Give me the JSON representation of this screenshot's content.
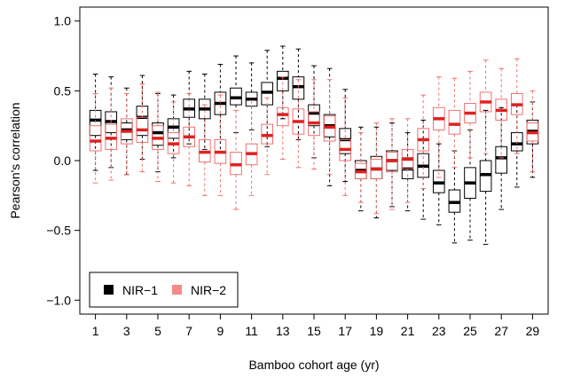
{
  "chart_data": {
    "type": "boxplot",
    "xlabel": "Bamboo cohort age (yr)",
    "ylabel": "Pearson's correlation",
    "ylim": [
      -1.1,
      1.1
    ],
    "yticks": [
      "1.0",
      "0.5",
      "0.0",
      "−0.5",
      "−1.0"
    ],
    "ytick_values": [
      1.0,
      0.5,
      0.0,
      -0.5,
      -1.0
    ],
    "xticks": [
      "1",
      "3",
      "5",
      "7",
      "9",
      "11",
      "13",
      "15",
      "17",
      "19",
      "21",
      "23",
      "25",
      "27",
      "29"
    ],
    "xtick_values": [
      1,
      3,
      5,
      7,
      9,
      11,
      13,
      15,
      17,
      19,
      21,
      23,
      25,
      27,
      29
    ],
    "legend_position": "bottom-left",
    "grid": false,
    "series": [
      {
        "name": "NIR−1",
        "color": "#000000",
        "median_color": "#000000",
        "x": [
          1,
          2,
          3,
          4,
          5,
          6,
          7,
          8,
          9,
          10,
          11,
          12,
          13,
          14,
          15,
          16,
          17,
          18,
          19,
          20,
          21,
          22,
          23,
          24,
          25,
          26,
          27,
          28,
          29
        ],
        "median": [
          0.29,
          0.28,
          0.22,
          0.31,
          0.2,
          0.24,
          0.37,
          0.37,
          0.41,
          0.45,
          0.44,
          0.49,
          0.59,
          0.53,
          0.34,
          0.25,
          0.15,
          -0.07,
          -0.06,
          0.0,
          -0.06,
          -0.04,
          -0.16,
          -0.3,
          -0.16,
          -0.1,
          0.02,
          0.12,
          0.21
        ],
        "q1": [
          0.18,
          0.2,
          0.15,
          0.18,
          0.11,
          0.16,
          0.31,
          0.3,
          0.33,
          0.4,
          0.39,
          0.4,
          0.5,
          0.44,
          0.25,
          0.17,
          0.05,
          -0.13,
          -0.13,
          -0.07,
          -0.13,
          -0.12,
          -0.23,
          -0.37,
          -0.27,
          -0.22,
          -0.09,
          0.07,
          0.12
        ],
        "q3": [
          0.36,
          0.35,
          0.27,
          0.39,
          0.27,
          0.3,
          0.44,
          0.44,
          0.49,
          0.52,
          0.49,
          0.56,
          0.64,
          0.6,
          0.4,
          0.33,
          0.23,
          0.0,
          0.03,
          0.07,
          0.02,
          0.05,
          -0.07,
          -0.21,
          -0.05,
          0.0,
          0.1,
          0.2,
          0.29
        ],
        "whisker_low": [
          -0.07,
          -0.05,
          -0.1,
          0.01,
          -0.08,
          0.02,
          0.12,
          0.08,
          0.06,
          0.2,
          0.22,
          0.1,
          0.3,
          0.15,
          0.02,
          -0.18,
          -0.15,
          -0.36,
          -0.41,
          -0.33,
          -0.36,
          -0.42,
          -0.46,
          -0.59,
          -0.57,
          -0.6,
          -0.35,
          -0.19,
          -0.12
        ],
        "whisker_high": [
          0.62,
          0.6,
          0.52,
          0.61,
          0.48,
          0.47,
          0.64,
          0.62,
          0.69,
          0.75,
          0.7,
          0.79,
          0.82,
          0.8,
          0.68,
          0.66,
          0.51,
          0.24,
          0.24,
          0.27,
          0.2,
          0.29,
          0.12,
          0.07,
          0.22,
          0.36,
          0.38,
          0.4,
          0.42
        ]
      },
      {
        "name": "NIR−2",
        "color": "#f07070",
        "median_color": "#e02020",
        "x": [
          1,
          2,
          3,
          4,
          5,
          6,
          7,
          8,
          9,
          10,
          11,
          12,
          13,
          14,
          15,
          16,
          17,
          18,
          19,
          20,
          21,
          22,
          23,
          24,
          25,
          26,
          27,
          28,
          29
        ],
        "median": [
          0.14,
          0.16,
          0.21,
          0.22,
          0.16,
          0.12,
          0.17,
          0.06,
          0.06,
          -0.03,
          0.05,
          0.18,
          0.33,
          0.28,
          0.27,
          0.24,
          0.08,
          -0.08,
          -0.06,
          0.0,
          0.01,
          0.15,
          0.3,
          0.26,
          0.34,
          0.42,
          0.36,
          0.4,
          0.2
        ],
        "q1": [
          0.07,
          0.08,
          0.12,
          0.13,
          0.08,
          0.05,
          0.1,
          -0.01,
          -0.02,
          -0.1,
          -0.03,
          0.12,
          0.25,
          0.19,
          0.18,
          0.14,
          0.0,
          -0.13,
          -0.13,
          -0.08,
          -0.06,
          0.07,
          0.22,
          0.19,
          0.27,
          0.35,
          0.29,
          0.33,
          0.14
        ],
        "q3": [
          0.25,
          0.26,
          0.3,
          0.31,
          0.25,
          0.2,
          0.24,
          0.15,
          0.15,
          0.06,
          0.12,
          0.26,
          0.38,
          0.37,
          0.35,
          0.32,
          0.15,
          -0.02,
          0.01,
          0.06,
          0.08,
          0.23,
          0.38,
          0.36,
          0.41,
          0.49,
          0.44,
          0.48,
          0.27
        ],
        "whisker_low": [
          -0.16,
          -0.14,
          -0.1,
          -0.08,
          -0.15,
          -0.16,
          -0.18,
          -0.25,
          -0.25,
          -0.35,
          -0.25,
          -0.1,
          0.01,
          -0.05,
          -0.06,
          -0.1,
          -0.25,
          -0.3,
          -0.38,
          -0.35,
          -0.3,
          -0.2,
          -0.12,
          -0.05,
          0.02,
          0.05,
          0.02,
          0.05,
          -0.08
        ],
        "whisker_high": [
          0.48,
          0.52,
          0.48,
          0.55,
          0.49,
          0.42,
          0.48,
          0.4,
          0.47,
          0.36,
          0.43,
          0.45,
          0.6,
          0.58,
          0.58,
          0.58,
          0.45,
          0.2,
          0.27,
          0.3,
          0.3,
          0.47,
          0.6,
          0.59,
          0.64,
          0.72,
          0.66,
          0.73,
          0.5
        ]
      }
    ]
  }
}
